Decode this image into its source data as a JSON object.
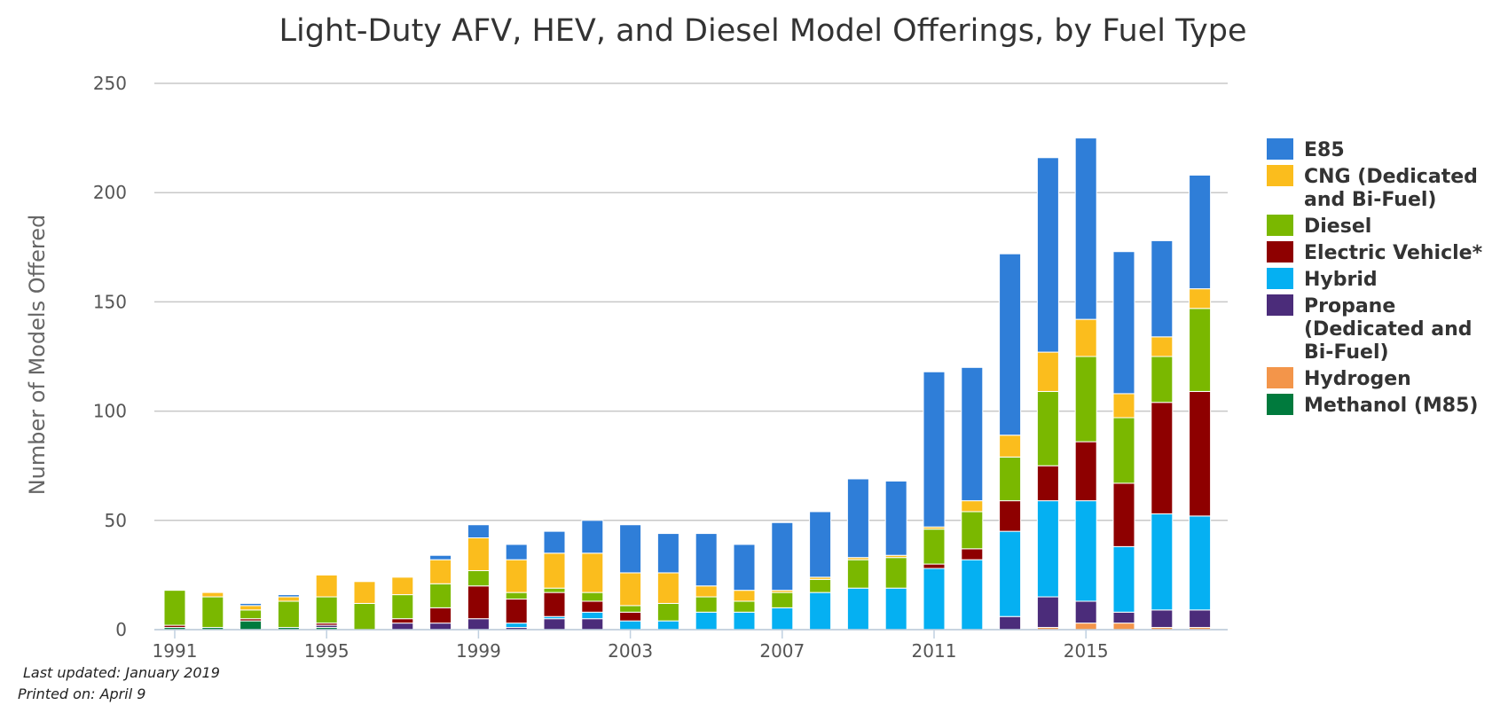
{
  "chart_data": {
    "type": "bar",
    "stacked": true,
    "title": "Light-Duty AFV, HEV, and Diesel Model Offerings, by Fuel Type",
    "ylabel": "Number of Models Offered",
    "xlabel": "",
    "ylim": [
      0,
      250
    ],
    "yticks": [
      0,
      50,
      100,
      150,
      200,
      250
    ],
    "xtick_labels": [
      "1991",
      "1995",
      "1999",
      "2003",
      "2007",
      "2011",
      "2015"
    ],
    "grid": true,
    "legend_position": "right",
    "categories": [
      "1991",
      "1992",
      "1993",
      "1994",
      "1995",
      "1996",
      "1997",
      "1998",
      "1999",
      "2000",
      "2001",
      "2002",
      "2003",
      "2004",
      "2005",
      "2006",
      "2007",
      "2008",
      "2009",
      "2010",
      "2011",
      "2012",
      "2013",
      "2014",
      "2015",
      "2016",
      "2017",
      "2018"
    ],
    "series": [
      {
        "name": "Methanol (M85)",
        "color": "#007a3d",
        "values": [
          1,
          1,
          4,
          1,
          1,
          0,
          0,
          0,
          0,
          0,
          0,
          0,
          0,
          0,
          0,
          0,
          0,
          0,
          0,
          0,
          0,
          0,
          0,
          0,
          0,
          0,
          0,
          0
        ]
      },
      {
        "name": "Hydrogen",
        "color": "#f3954a",
        "values": [
          0,
          0,
          0,
          0,
          0,
          0,
          0,
          0,
          0,
          0,
          0,
          0,
          0,
          0,
          0,
          0,
          0,
          0,
          0,
          0,
          0,
          0,
          0,
          1,
          3,
          3,
          1,
          1
        ]
      },
      {
        "name": "Propane (Dedicated and Bi-Fuel)",
        "color": "#4b2c7a",
        "values": [
          0,
          0,
          0,
          0,
          1,
          0,
          3,
          3,
          5,
          1,
          5,
          5,
          0,
          0,
          0,
          0,
          0,
          0,
          0,
          0,
          0,
          0,
          6,
          14,
          10,
          5,
          8,
          8
        ]
      },
      {
        "name": "Hybrid",
        "color": "#05b0f2",
        "values": [
          0,
          0,
          0,
          0,
          0,
          0,
          0,
          0,
          0,
          2,
          1,
          3,
          4,
          4,
          8,
          8,
          10,
          17,
          19,
          19,
          28,
          32,
          39,
          44,
          46,
          30,
          44,
          43
        ]
      },
      {
        "name": "Electric Vehicle*",
        "color": "#8e0000",
        "values": [
          1,
          0,
          1,
          0,
          1,
          0,
          2,
          7,
          15,
          11,
          11,
          5,
          4,
          0,
          0,
          0,
          0,
          0,
          0,
          0,
          2,
          5,
          14,
          16,
          27,
          29,
          51,
          57
        ]
      },
      {
        "name": "Diesel",
        "color": "#7ab800",
        "values": [
          16,
          14,
          4,
          12,
          12,
          12,
          11,
          11,
          7,
          3,
          2,
          4,
          3,
          8,
          7,
          5,
          7,
          6,
          13,
          14,
          16,
          17,
          20,
          34,
          39,
          30,
          21,
          38
        ]
      },
      {
        "name": "CNG (Dedicated and Bi-Fuel)",
        "color": "#fbbd1d",
        "values": [
          0,
          2,
          2,
          2,
          10,
          10,
          8,
          11,
          15,
          15,
          16,
          18,
          15,
          14,
          5,
          5,
          1,
          1,
          1,
          1,
          1,
          5,
          10,
          18,
          17,
          11,
          9,
          9
        ]
      },
      {
        "name": "E85",
        "color": "#2f7ed8",
        "values": [
          0,
          0,
          1,
          1,
          0,
          0,
          0,
          2,
          6,
          7,
          10,
          15,
          22,
          18,
          24,
          21,
          31,
          30,
          36,
          34,
          71,
          61,
          83,
          89,
          83,
          65,
          44,
          52
        ]
      }
    ],
    "legend_order": [
      "E85",
      "CNG (Dedicated and Bi-Fuel)",
      "Diesel",
      "Electric Vehicle*",
      "Hybrid",
      "Propane (Dedicated and Bi-Fuel)",
      "Hydrogen",
      "Methanol (M85)"
    ]
  },
  "legend": {
    "items": [
      {
        "lines": [
          "E85"
        ],
        "color": "#2f7ed8"
      },
      {
        "lines": [
          "CNG (Dedicated",
          "and Bi-Fuel)"
        ],
        "color": "#fbbd1d"
      },
      {
        "lines": [
          "Diesel"
        ],
        "color": "#7ab800"
      },
      {
        "lines": [
          "Electric Vehicle*"
        ],
        "color": "#8e0000"
      },
      {
        "lines": [
          "Hybrid"
        ],
        "color": "#05b0f2"
      },
      {
        "lines": [
          "Propane",
          "(Dedicated and",
          "Bi-Fuel)"
        ],
        "color": "#4b2c7a"
      },
      {
        "lines": [
          "Hydrogen"
        ],
        "color": "#f3954a"
      },
      {
        "lines": [
          "Methanol (M85)"
        ],
        "color": "#007a3d"
      }
    ]
  },
  "footer": {
    "last_updated": "Last updated: January 2019",
    "printed_on": "Printed on: April 9"
  }
}
